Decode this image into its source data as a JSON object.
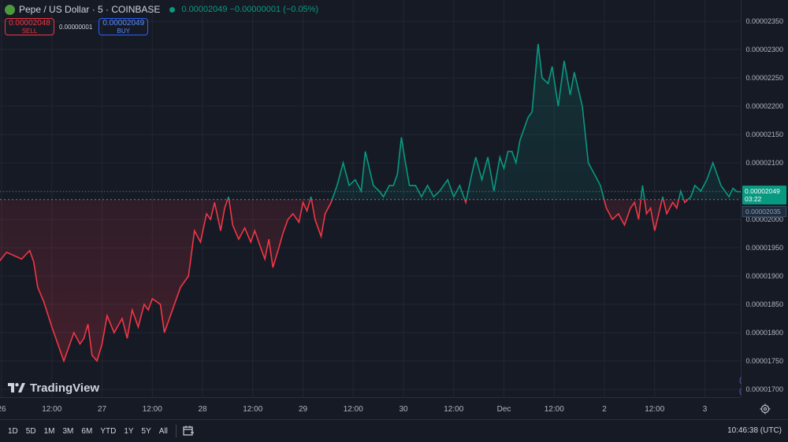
{
  "legend": {
    "title": "Pepe / US Dollar · 5 · COINBASE",
    "last_change": "0.00002049 −0.00000001 (−0.05%)"
  },
  "trade": {
    "sell_price": "0.00002048",
    "sell_label": "SELL",
    "spread": "0.00000001",
    "buy_price": "0.00002049",
    "buy_label": "BUY"
  },
  "price_badge": {
    "price": "0.00002049",
    "countdown": "03:22"
  },
  "prev_close_badge": "0.00002035",
  "branding": "TradingView",
  "time_ranges": [
    "1D",
    "5D",
    "1M",
    "3M",
    "6M",
    "YTD",
    "1Y",
    "5Y",
    "All"
  ],
  "clock": "10:46:38 (UTC)",
  "colors": {
    "up": "#089981",
    "down": "#f23645",
    "background": "#161a25",
    "grid": "#232632"
  },
  "icons": [
    "tradingview-logo-icon",
    "settings-gear-icon",
    "calendar-range-icon"
  ],
  "chart_data": {
    "type": "line",
    "symbol": "PEPE/USD",
    "interval": "5",
    "baseline": 2.035e-05,
    "last": 2.049e-05,
    "ylim": [
      1.685e-05,
      2.385e-05
    ],
    "y_ticks": [
      "0.00002350",
      "0.00002300",
      "0.00002250",
      "0.00002200",
      "0.00002150",
      "0.00002100",
      "0.00002050",
      "0.00002000",
      "0.00001950",
      "0.00001900",
      "0.00001850",
      "0.00001800",
      "0.00001750",
      "0.00001700"
    ],
    "x_ticks": [
      "26",
      "12:00",
      "27",
      "12:00",
      "28",
      "12:00",
      "29",
      "12:00",
      "30",
      "12:00",
      "Dec",
      "12:00",
      "2",
      "12:00",
      "3"
    ],
    "series": [
      {
        "x": [
          -0.05,
          0.05,
          0.2,
          0.28,
          0.32,
          0.36,
          0.42,
          0.5,
          0.62,
          0.72,
          0.78,
          0.82,
          0.86,
          0.9,
          0.95,
          1.0,
          1.05,
          1.12,
          1.2,
          1.25,
          1.3,
          1.36,
          1.42,
          1.46,
          1.5,
          1.58,
          1.62,
          1.7,
          1.78,
          1.86,
          1.92,
          1.98,
          2.04,
          2.08,
          2.12,
          2.18,
          2.22,
          2.26,
          2.3,
          2.36,
          2.42,
          2.48,
          2.52,
          2.58,
          2.62,
          2.66,
          2.7,
          2.76,
          2.8,
          2.85,
          2.9,
          2.96,
          3.0,
          3.04,
          3.08,
          3.12,
          3.18,
          3.22,
          3.28,
          3.34,
          3.4,
          3.46,
          3.52,
          3.58,
          3.62,
          3.7,
          3.76,
          3.8,
          3.86,
          3.9,
          3.94,
          3.98,
          4.02,
          4.06,
          4.12,
          4.18,
          4.24,
          4.3,
          4.36,
          4.44,
          4.5,
          4.56,
          4.62,
          4.68,
          4.72,
          4.78,
          4.84,
          4.9,
          4.96,
          5.0,
          5.04,
          5.08,
          5.12,
          5.16,
          5.2,
          5.24,
          5.28,
          5.34,
          5.38,
          5.44,
          5.48,
          5.54,
          5.6,
          5.66,
          5.7,
          5.78,
          5.84,
          5.9,
          5.96,
          6.02,
          6.08,
          6.14,
          6.2,
          6.26,
          6.3,
          6.34,
          6.38,
          6.42,
          6.46,
          6.5,
          6.54,
          6.58,
          6.62,
          6.68,
          6.72,
          6.76,
          6.8,
          6.86,
          6.9,
          6.96,
          7.02,
          7.08,
          7.12,
          7.16,
          7.2,
          7.24,
          7.28,
          7.32,
          7.36
        ],
        "values": [
          1.92e-05,
          1.942e-05,
          1.93e-05,
          1.945e-05,
          1.925e-05,
          1.88e-05,
          1.855e-05,
          1.81e-05,
          1.75e-05,
          1.8e-05,
          1.78e-05,
          1.79e-05,
          1.815e-05,
          1.76e-05,
          1.75e-05,
          1.78e-05,
          1.83e-05,
          1.8e-05,
          1.825e-05,
          1.79e-05,
          1.84e-05,
          1.81e-05,
          1.85e-05,
          1.84e-05,
          1.86e-05,
          1.85e-05,
          1.8e-05,
          1.84e-05,
          1.88e-05,
          1.9e-05,
          1.98e-05,
          1.96e-05,
          2.01e-05,
          2e-05,
          2.03e-05,
          1.98e-05,
          2.02e-05,
          2.04e-05,
          1.99e-05,
          1.965e-05,
          1.985e-05,
          1.96e-05,
          1.98e-05,
          1.95e-05,
          1.93e-05,
          1.965e-05,
          1.915e-05,
          1.95e-05,
          1.975e-05,
          2e-05,
          2.01e-05,
          1.995e-05,
          2.03e-05,
          2.015e-05,
          2.04e-05,
          2e-05,
          1.97e-05,
          2.01e-05,
          2.03e-05,
          2.06e-05,
          2.1e-05,
          2.06e-05,
          2.07e-05,
          2.05e-05,
          2.12e-05,
          2.06e-05,
          2.05e-05,
          2.04e-05,
          2.06e-05,
          2.06e-05,
          2.08e-05,
          2.145e-05,
          2.1e-05,
          2.06e-05,
          2.06e-05,
          2.04e-05,
          2.06e-05,
          2.04e-05,
          2.05e-05,
          2.07e-05,
          2.04e-05,
          2.06e-05,
          2.03e-05,
          2.08e-05,
          2.11e-05,
          2.07e-05,
          2.11e-05,
          2.05e-05,
          2.11e-05,
          2.09e-05,
          2.12e-05,
          2.12e-05,
          2.1e-05,
          2.14e-05,
          2.16e-05,
          2.18e-05,
          2.19e-05,
          2.31e-05,
          2.25e-05,
          2.24e-05,
          2.27e-05,
          2.2e-05,
          2.28e-05,
          2.22e-05,
          2.26e-05,
          2.2e-05,
          2.1e-05,
          2.08e-05,
          2.06e-05,
          2.02e-05,
          2e-05,
          2.01e-05,
          1.99e-05,
          2.02e-05,
          2.03e-05,
          2e-05,
          2.06e-05,
          2.01e-05,
          2.02e-05,
          1.98e-05,
          2.01e-05,
          2.04e-05,
          2.01e-05,
          2.03e-05,
          2.02e-05,
          2.05e-05,
          2.03e-05,
          2.04e-05,
          2.06e-05,
          2.05e-05,
          2.07e-05,
          2.1e-05,
          2.08e-05,
          2.06e-05,
          2.05e-05,
          2.04e-05,
          2.055e-05,
          2.049e-05,
          2.049e-05
        ]
      }
    ]
  }
}
